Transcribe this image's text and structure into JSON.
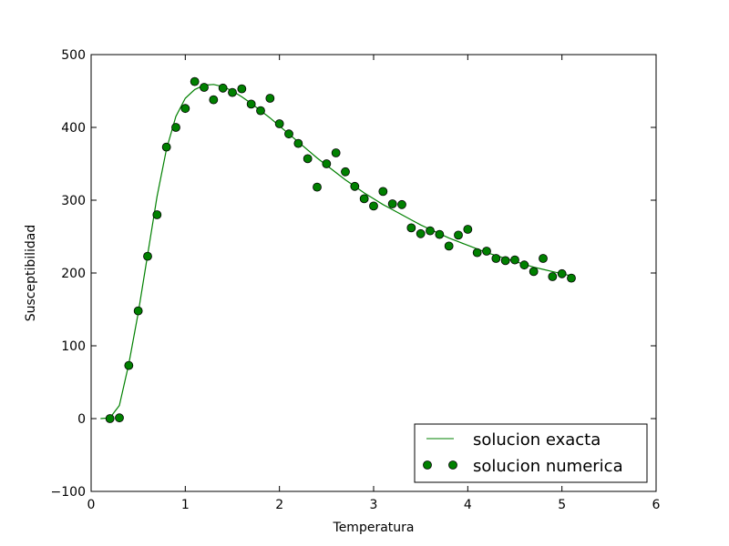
{
  "chart_data": {
    "type": "scatter",
    "xlabel": "Temperatura",
    "ylabel": "Susceptibilidad",
    "xlim": [
      0,
      6
    ],
    "ylim": [
      -100,
      500
    ],
    "x_ticks": [
      0,
      1,
      2,
      3,
      4,
      5,
      6
    ],
    "y_ticks": [
      -100,
      0,
      100,
      200,
      300,
      400,
      500
    ],
    "x_tick_labels": [
      "0",
      "1",
      "2",
      "3",
      "4",
      "5",
      "6"
    ],
    "y_tick_labels": [
      "−100",
      "0",
      "100",
      "200",
      "300",
      "400",
      "500"
    ],
    "grid": false,
    "legend_position": "lower-right",
    "series": [
      {
        "name": "solucion exacta",
        "style": "line",
        "color": "#008000",
        "x": [
          0.1,
          0.2,
          0.3,
          0.4,
          0.5,
          0.6,
          0.7,
          0.8,
          0.9,
          1.0,
          1.1,
          1.2,
          1.3,
          1.4,
          1.5,
          1.6,
          1.7,
          1.8,
          1.9,
          2.0,
          2.1,
          2.2,
          2.3,
          2.4,
          2.5,
          2.6,
          2.7,
          2.8,
          2.9,
          3.0,
          3.1,
          3.2,
          3.3,
          3.4,
          3.5,
          3.6,
          3.7,
          3.8,
          3.9,
          4.0,
          4.1,
          4.2,
          4.3,
          4.4,
          4.5,
          4.6,
          4.7,
          4.8,
          4.9,
          5.0,
          5.1
        ],
        "y": [
          0,
          1,
          18,
          75,
          145,
          225,
          305,
          370,
          415,
          440,
          452,
          458,
          459,
          456,
          450,
          442,
          433,
          423,
          413,
          402,
          391,
          380,
          369,
          358,
          348,
          338,
          328,
          319,
          310,
          302,
          294,
          287,
          280,
          273,
          266,
          260,
          254,
          248,
          243,
          238,
          233,
          228,
          224,
          220,
          216,
          212,
          208,
          205,
          202,
          199,
          196
        ]
      },
      {
        "name": "solucion numerica",
        "style": "markers",
        "color": "#008000",
        "x": [
          0.2,
          0.3,
          0.4,
          0.5,
          0.6,
          0.7,
          0.8,
          0.9,
          1.0,
          1.1,
          1.2,
          1.3,
          1.4,
          1.5,
          1.6,
          1.7,
          1.8,
          1.9,
          2.0,
          2.1,
          2.2,
          2.3,
          2.4,
          2.5,
          2.6,
          2.7,
          2.8,
          2.9,
          3.0,
          3.1,
          3.2,
          3.3,
          3.4,
          3.5,
          3.6,
          3.7,
          3.8,
          3.9,
          4.0,
          4.1,
          4.2,
          4.3,
          4.4,
          4.5,
          4.6,
          4.7,
          4.8,
          4.9,
          5.0,
          5.1
        ],
        "y": [
          0,
          1,
          73,
          148,
          223,
          280,
          373,
          400,
          426,
          463,
          455,
          438,
          454,
          448,
          453,
          432,
          423,
          440,
          405,
          391,
          378,
          357,
          318,
          350,
          365,
          339,
          319,
          302,
          292,
          312,
          295,
          294,
          262,
          254,
          258,
          253,
          237,
          252,
          260,
          228,
          230,
          220,
          217,
          218,
          211,
          202,
          220,
          195,
          199,
          193
        ]
      }
    ]
  }
}
